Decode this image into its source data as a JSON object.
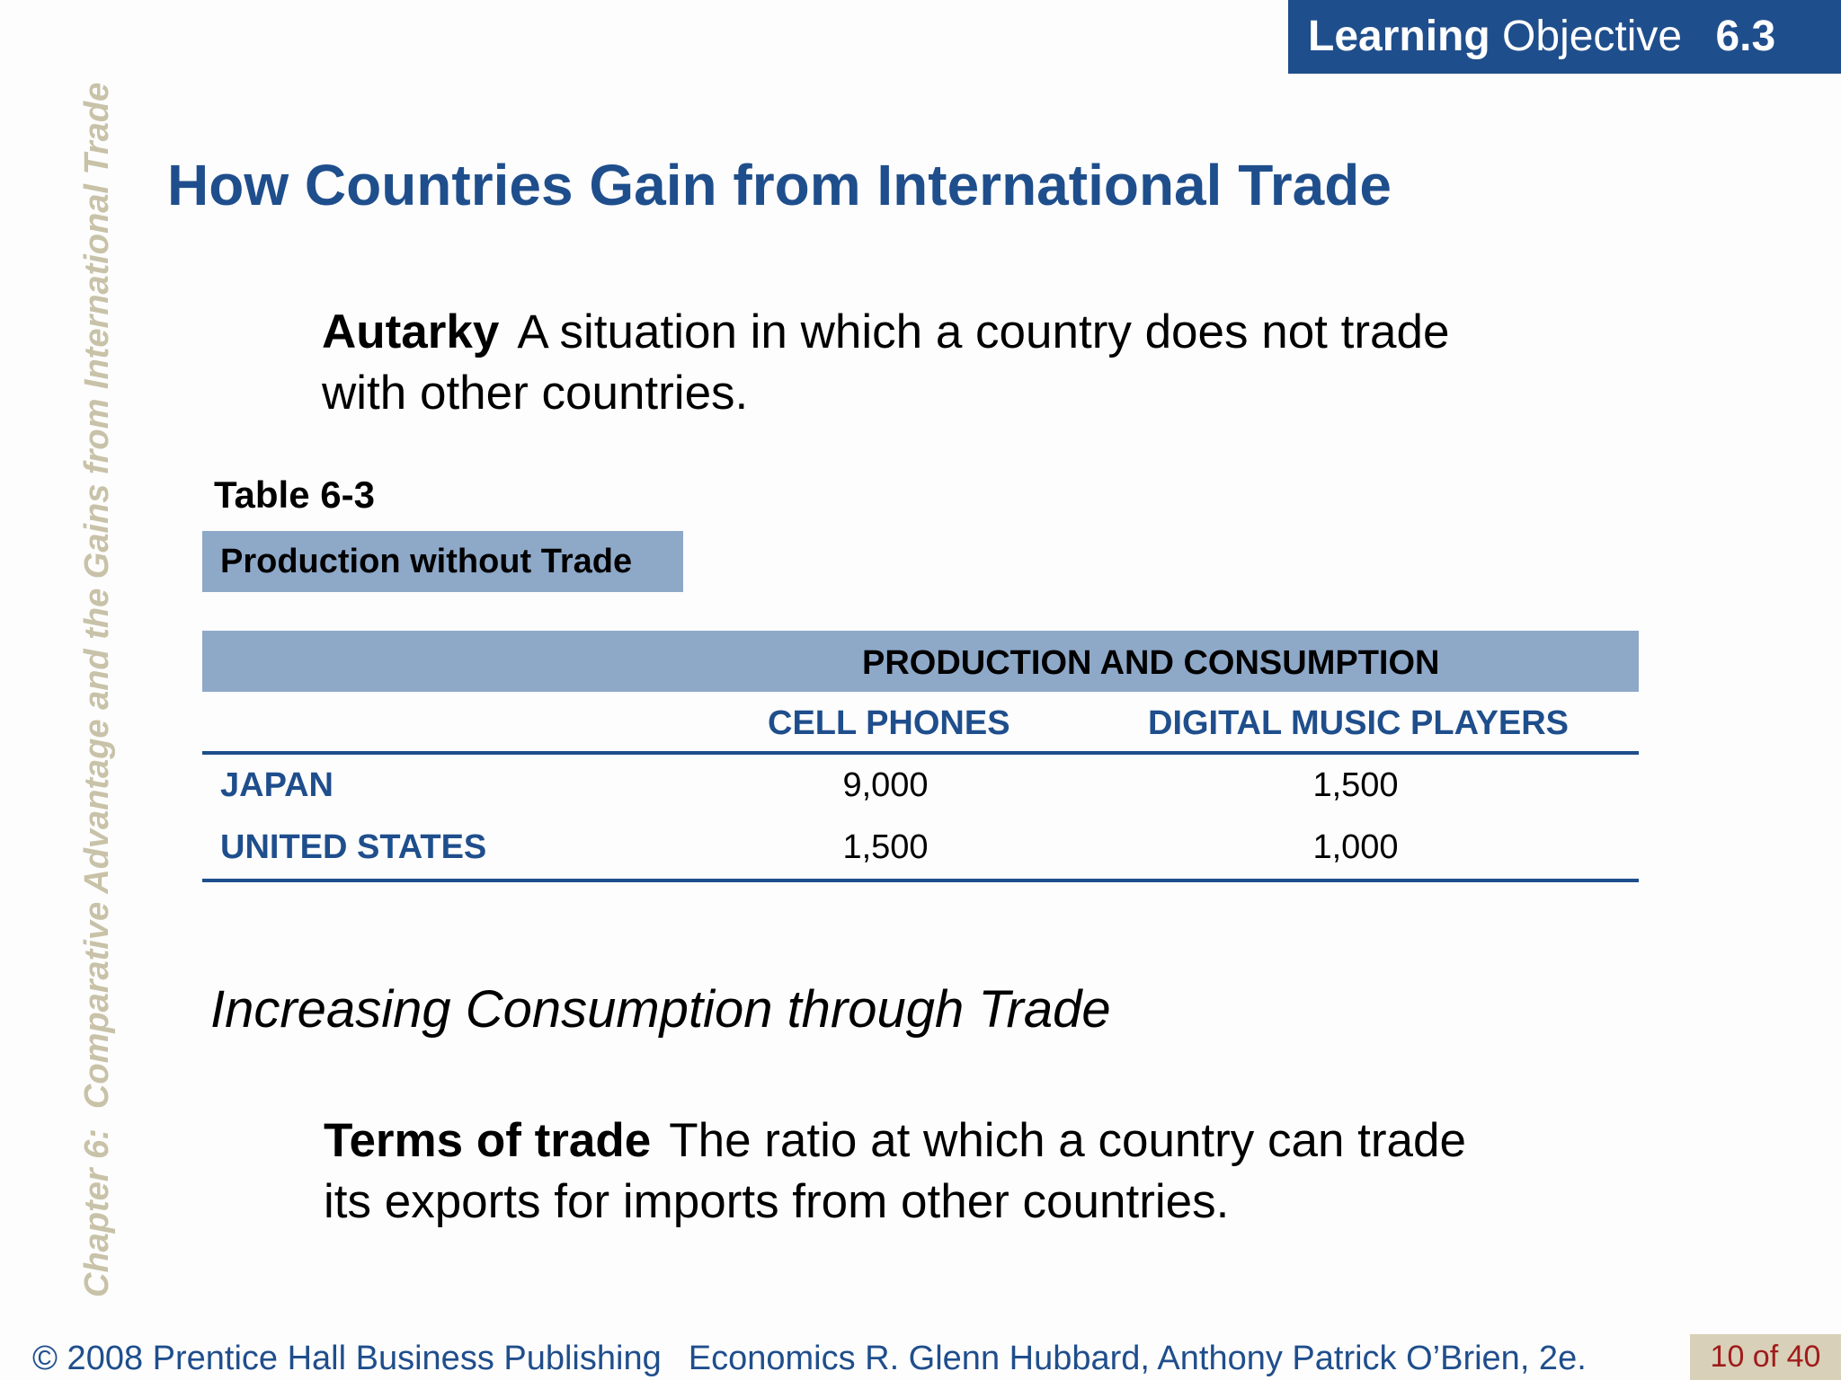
{
  "side_label": {
    "chapter": "Chapter 6:",
    "title": "Comparative Advantage and the Gains from International Trade"
  },
  "learning_objective": {
    "label_bold": "Learning",
    "label_rest": "Objective",
    "number": "6.3"
  },
  "title": "How Countries Gain from International Trade",
  "definitions": {
    "autarky": {
      "term": "Autarky",
      "text": "A situation in which a country does not trade with other countries."
    },
    "terms_of_trade": {
      "term": "Terms of trade",
      "text": "The ratio at which a country can trade its exports for imports from other countries."
    }
  },
  "table": {
    "label": "Table 6-3",
    "caption": "Production without Trade",
    "band_header": "PRODUCTION AND CONSUMPTION",
    "columns": [
      "CELL PHONES",
      "DIGITAL MUSIC PLAYERS"
    ],
    "rows": [
      {
        "country": "JAPAN",
        "values": [
          "9,000",
          "1,500"
        ]
      },
      {
        "country": "UNITED STATES",
        "values": [
          "1,500",
          "1,000"
        ]
      }
    ]
  },
  "subheading": "Increasing Consumption through Trade",
  "footer": {
    "copyright": "© 2008 Prentice Hall Business Publishing",
    "book": "Economics  R. Glenn Hubbard, Anthony Patrick O’Brien, 2e.",
    "page": "10 of 40"
  },
  "colors": {
    "brand_blue": "#1f4e8c",
    "table_band": "#8ea8c8",
    "side_label": "#c8c2a8",
    "page_box": "#d8d0b8",
    "page_text": "#a01c1c"
  }
}
